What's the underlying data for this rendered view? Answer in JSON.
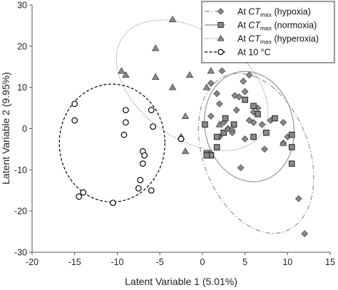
{
  "chart_data": {
    "type": "scatter",
    "xlabel": "Latent Variable 1 (5.01%)",
    "ylabel": "Latent Variable 2 (9.95%)",
    "xlim": [
      -20,
      15
    ],
    "ylim": [
      -30,
      30
    ],
    "xticks": [
      -20,
      -15,
      -10,
      -5,
      0,
      5,
      10,
      15
    ],
    "yticks": [
      -30,
      -20,
      -10,
      0,
      10,
      20,
      30
    ],
    "grid": false,
    "legend_position": "top-right",
    "series": [
      {
        "key": "hypoxia",
        "name_prefix": "At ",
        "name_italic": "CT",
        "name_sub": "max",
        "name_suffix": " (hypoxia)",
        "marker": "diamond",
        "color": "#8a8a8a",
        "ellipse_style": "dashdot",
        "ellipse": {
          "cx": 6.3,
          "cy": -6.0,
          "rx": 6.2,
          "ry": 20.2,
          "angle_deg": -21
        },
        "points": [
          [
            2.3,
            14
          ],
          [
            4.8,
            11.5
          ],
          [
            5.5,
            13
          ],
          [
            1,
            11
          ],
          [
            1.7,
            8.5
          ],
          [
            3.8,
            8
          ],
          [
            4.3,
            7.7
          ],
          [
            5,
            9
          ],
          [
            6,
            4
          ],
          [
            6.5,
            5
          ],
          [
            4,
            4.5
          ],
          [
            5.5,
            2
          ],
          [
            7,
            1
          ],
          [
            8,
            2
          ],
          [
            2,
            6
          ],
          [
            1,
            3
          ],
          [
            2.5,
            1.5
          ],
          [
            3.5,
            -1
          ],
          [
            5,
            -2.5
          ],
          [
            6,
            1.5
          ],
          [
            7.3,
            -5
          ],
          [
            10,
            -2
          ],
          [
            9.5,
            -3.5
          ],
          [
            11.3,
            -17
          ],
          [
            12,
            -25.5
          ],
          [
            2,
            -2
          ],
          [
            1,
            -6
          ],
          [
            4.5,
            -9.5
          ],
          [
            3,
            0
          ],
          [
            9.5,
            1.5
          ]
        ]
      },
      {
        "key": "normoxia",
        "name_prefix": "At ",
        "name_italic": "CT",
        "name_sub": "max",
        "name_suffix": " (normoxia)",
        "marker": "square",
        "color": "#8a8a8a",
        "ellipse_style": "solid",
        "ellipse": {
          "cx": 5.5,
          "cy": 0.5,
          "rx": 5.2,
          "ry": 13.5,
          "angle_deg": -12
        },
        "points": [
          [
            0.5,
            -6
          ],
          [
            1,
            -6.5
          ],
          [
            1.7,
            -4.5
          ],
          [
            0.3,
            1
          ],
          [
            2.5,
            -1
          ],
          [
            2.7,
            2.5
          ],
          [
            3.7,
            1
          ],
          [
            5,
            7
          ],
          [
            6,
            5.5
          ],
          [
            6.5,
            3.5
          ],
          [
            6,
            -2
          ],
          [
            7.5,
            -1
          ],
          [
            8.5,
            2.5
          ],
          [
            10.5,
            -1.5
          ],
          [
            10.5,
            -4.5
          ],
          [
            10.5,
            -8.5
          ],
          [
            1.7,
            -2
          ],
          [
            0.5,
            -6.5
          ]
        ]
      },
      {
        "key": "hyperoxia",
        "name_prefix": "At ",
        "name_italic": "CT",
        "name_sub": "max",
        "name_suffix": " (hyperoxia)",
        "marker": "triangle",
        "color": "#8a8a8a",
        "ellipse_style": "dotted",
        "ellipse": {
          "cx": -1.2,
          "cy": 10.5,
          "rx": 6.3,
          "ry": 20.5,
          "angle_deg": -55
        },
        "points": [
          [
            -3.5,
            26.5
          ],
          [
            -5.5,
            19.5
          ],
          [
            -9.5,
            14
          ],
          [
            -9,
            13
          ],
          [
            -5.5,
            12.5
          ],
          [
            -3.5,
            10
          ],
          [
            -1.5,
            13
          ],
          [
            1,
            14
          ],
          [
            0.5,
            10
          ],
          [
            -2,
            3
          ],
          [
            -2.5,
            -2
          ],
          [
            -2,
            -5.5
          ],
          [
            3,
            0
          ],
          [
            9.5,
            -3.5
          ],
          [
            3.5,
            0
          ],
          [
            2,
            1
          ]
        ]
      },
      {
        "key": "ten",
        "name_prefix": "At 10 °C",
        "name_italic": "",
        "name_sub": "",
        "name_suffix": "",
        "marker": "circle",
        "color": "#000000",
        "ellipse_style": "dashed",
        "ellipse": {
          "cx": -10.6,
          "cy": -3.5,
          "rx": 6.2,
          "ry": 14.3,
          "angle_deg": 0
        },
        "points": [
          [
            -15,
            6
          ],
          [
            -15,
            2
          ],
          [
            -14,
            -15.5
          ],
          [
            -14.5,
            -16.5
          ],
          [
            -10.5,
            -18
          ],
          [
            -9,
            4.5
          ],
          [
            -9,
            1.5
          ],
          [
            -9.2,
            -1.5
          ],
          [
            -7,
            -5.5
          ],
          [
            -6.8,
            -6.5
          ],
          [
            -7,
            -8.5
          ],
          [
            -7.3,
            -12.5
          ],
          [
            -7.5,
            -14.5
          ],
          [
            -6,
            4.5
          ],
          [
            -5.8,
            0.5
          ],
          [
            -6,
            -15
          ],
          [
            -2.5,
            -2.5
          ]
        ]
      }
    ]
  }
}
